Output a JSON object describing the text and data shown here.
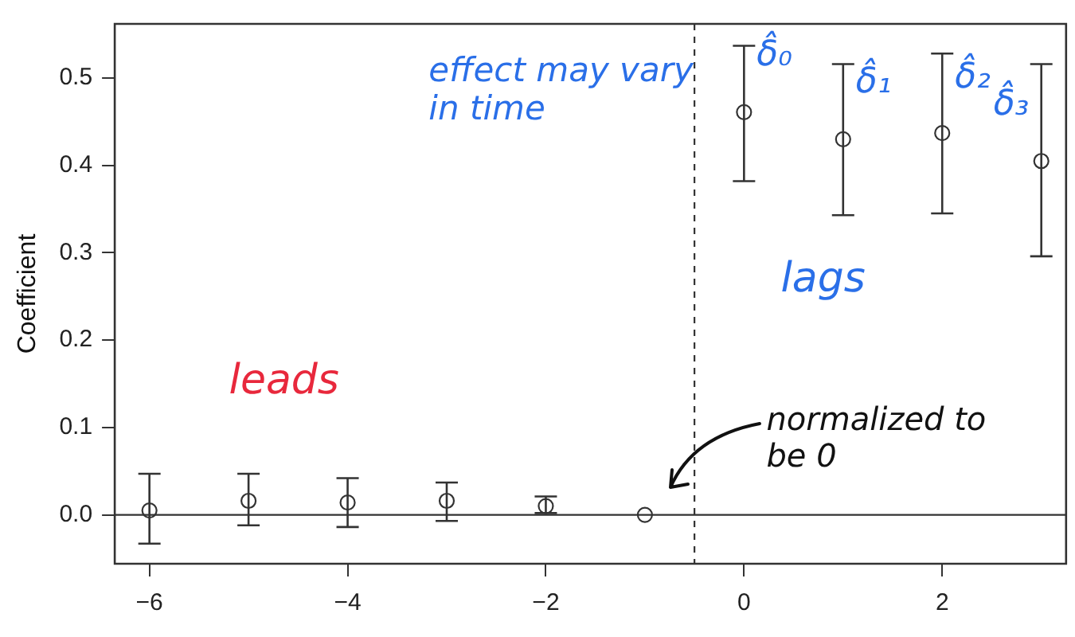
{
  "chart_data": {
    "type": "scatter",
    "ylabel": "Coefficient",
    "x": [
      -6,
      -5,
      -4,
      -3,
      -2,
      -1,
      0,
      1,
      2,
      3
    ],
    "values": [
      0.005,
      0.016,
      0.014,
      0.016,
      0.01,
      0,
      0.461,
      0.43,
      0.437,
      0.405
    ],
    "errors": [
      [
        -0.033,
        0.047
      ],
      [
        -0.012,
        0.047
      ],
      [
        -0.014,
        0.042
      ],
      [
        -0.007,
        0.037
      ],
      [
        0.002,
        0.021
      ],
      null,
      [
        0.382,
        0.537
      ],
      [
        0.343,
        0.516
      ],
      [
        0.345,
        0.528
      ],
      [
        0.296,
        0.516
      ]
    ],
    "color": "#333333",
    "marker": "circle",
    "xlim": [
      -6.35,
      3.25
    ],
    "xticks": [
      -6,
      -4,
      -2,
      0,
      2
    ],
    "ylim": [
      -0.056,
      0.562
    ],
    "yticks": [
      {
        "value": 0,
        "label": "0.0"
      },
      {
        "value": 0.1,
        "label": "0.1"
      },
      {
        "value": 0.2,
        "label": "0.2"
      },
      {
        "value": 0.3,
        "label": "0.3"
      },
      {
        "value": 0.4,
        "label": "0.4"
      },
      {
        "value": 0.5,
        "label": "0.5"
      }
    ],
    "grid": false,
    "legend": false,
    "ref_lines": [
      {
        "axis": "y",
        "value": 0,
        "color": "#333333",
        "line_style": "solid"
      },
      {
        "axis": "x",
        "value": -0.5,
        "color": "#333333",
        "line_style": "dashed"
      }
    ],
    "annotations": [
      "effect may vary in time",
      "leads",
      "lags",
      "normalized to be 0",
      {
        "text": "δ̂₀",
        "x": 0,
        "y": 0.461
      },
      {
        "text": "δ̂₁",
        "x": 1,
        "y": 0.43
      },
      {
        "text": "δ̂₂",
        "x": 2,
        "y": 0.437
      },
      {
        "text": "δ̂₃",
        "x": 3,
        "y": 0.405
      }
    ]
  }
}
